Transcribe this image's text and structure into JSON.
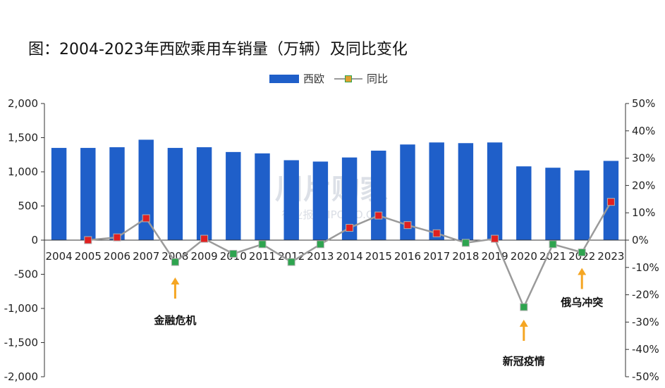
{
  "chart_data": {
    "type": "bar+line",
    "title": "图：2004-2023年西欧乘用车销量（万辆）及同比变化",
    "categories": [
      "2004",
      "2005",
      "2006",
      "2007",
      "2008",
      "2009",
      "2010",
      "2011",
      "2012",
      "2013",
      "2014",
      "2015",
      "2016",
      "2017",
      "2018",
      "2019",
      "2020",
      "2021",
      "2022",
      "2023"
    ],
    "series": [
      {
        "name": "西欧",
        "type": "bar",
        "axis": "left",
        "values": [
          1350,
          1350,
          1360,
          1470,
          1350,
          1360,
          1290,
          1270,
          1170,
          1150,
          1210,
          1310,
          1400,
          1430,
          1420,
          1430,
          1080,
          1060,
          1020,
          1160
        ]
      },
      {
        "name": "同比",
        "type": "line",
        "axis": "right",
        "values": [
          null,
          0,
          1,
          8,
          -8,
          0.5,
          -5,
          -1.5,
          -8,
          -1.5,
          4.5,
          9,
          5.5,
          2.5,
          -1,
          0.5,
          -24.5,
          -1.5,
          -4.5,
          14
        ],
        "marker_colors": [
          null,
          "#e02020",
          "#e02020",
          "#e02020",
          "#2ea44f",
          "#e02020",
          "#2ea44f",
          "#2ea44f",
          "#2ea44f",
          "#2ea44f",
          "#e02020",
          "#e02020",
          "#e02020",
          "#e02020",
          "#2ea44f",
          "#e02020",
          "#2ea44f",
          "#2ea44f",
          "#2ea44f",
          "#e02020"
        ]
      }
    ],
    "left_axis": {
      "ylim": [
        -2000,
        2000
      ],
      "ticks": [
        "2,000",
        "1,500",
        "1,000",
        "500",
        "0",
        "-500",
        "-1,000",
        "-1,500",
        "-2,000"
      ]
    },
    "right_axis": {
      "ylim": [
        -50,
        50
      ],
      "ticks": [
        "50%",
        "40%",
        "30%",
        "20%",
        "10%",
        "0%",
        "-10%",
        "-20%",
        "-30%",
        "-40%",
        "-50%"
      ]
    },
    "legend": "top-center",
    "annotations": [
      {
        "text": "金融危机",
        "x": "2008",
        "value": -8,
        "side": "below"
      },
      {
        "text": "新冠疫情",
        "x": "2020",
        "value": -24.5,
        "side": "below"
      },
      {
        "text": "俄乌冲突",
        "x": "2022",
        "value": -4.5,
        "side": "below"
      }
    ],
    "colors": {
      "bar": "#1f5fc9",
      "line": "#9a9a9a",
      "up": "#e02020",
      "down": "#2ea44f",
      "arrow": "#f5a623"
    }
  },
  "legend_items": {
    "bar": "西欧",
    "line": "同比"
  },
  "watermark": {
    "main": "川片购家",
    "sub": "行业报告 IPOIPO.CN"
  }
}
